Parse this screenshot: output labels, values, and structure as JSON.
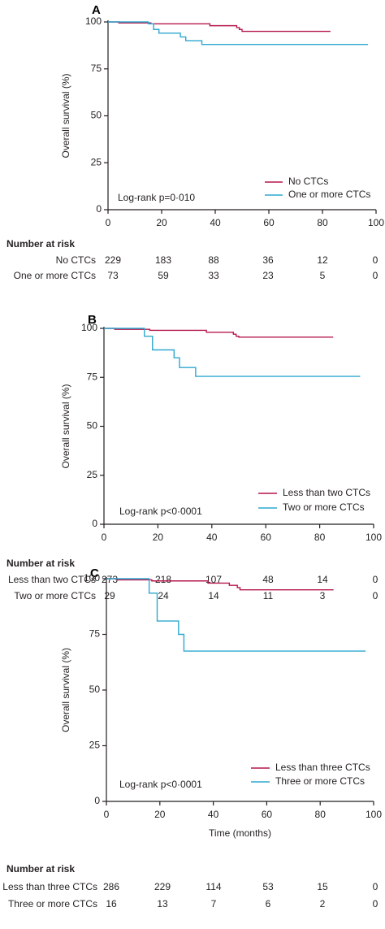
{
  "colors": {
    "red": "#b5174b",
    "blue": "#2ea8cf",
    "axis": "#231f20"
  },
  "chart_data": [
    {
      "type": "line",
      "panel": "A",
      "xlabel": "",
      "ylabel": "Overall survival (%)",
      "xlim": [
        0,
        100
      ],
      "ylim": [
        0,
        100
      ],
      "xticks": [
        0,
        20,
        40,
        60,
        80,
        100
      ],
      "yticks": [
        0,
        25,
        50,
        75,
        100
      ],
      "annotation": "Log-rank p=0·010",
      "legend_position": "bottom-right",
      "series": [
        {
          "name": "No CTCs",
          "color": "#b5174b",
          "x": [
            0,
            4,
            16,
            38,
            48,
            49,
            50,
            83
          ],
          "y": [
            100,
            99.5,
            99,
            98,
            97,
            96,
            95,
            95
          ]
        },
        {
          "name": "One or more CTCs",
          "color": "#2ea8cf",
          "x": [
            0,
            15,
            17,
            19,
            27,
            29,
            35,
            97
          ],
          "y": [
            100,
            99,
            96,
            94,
            92,
            90,
            88,
            88
          ]
        }
      ],
      "risk_table": {
        "title": "Number at risk",
        "rows": [
          {
            "label": "No CTCs",
            "values": [
              "229",
              "183",
              "88",
              "36",
              "12",
              "0"
            ]
          },
          {
            "label": "One or more CTCs",
            "values": [
              "73",
              "59",
              "33",
              "23",
              "5",
              "0"
            ]
          }
        ]
      }
    },
    {
      "type": "line",
      "panel": "B",
      "xlabel": "",
      "ylabel": "Overall survival (%)",
      "xlim": [
        0,
        100
      ],
      "ylim": [
        0,
        100
      ],
      "xticks": [
        0,
        20,
        40,
        60,
        80,
        100
      ],
      "yticks": [
        0,
        25,
        50,
        75,
        100
      ],
      "annotation": "Log-rank p<0·0001",
      "legend_position": "bottom-right",
      "series": [
        {
          "name": "Less than two CTCs",
          "color": "#b5174b",
          "x": [
            0,
            4,
            17,
            38,
            48,
            49,
            50,
            85
          ],
          "y": [
            100,
            99.5,
            99,
            98,
            97,
            96,
            95.5,
            95.5
          ]
        },
        {
          "name": "Two or more CTCs",
          "color": "#2ea8cf",
          "x": [
            0,
            15,
            18,
            26,
            28,
            34,
            95
          ],
          "y": [
            100,
            96,
            89,
            85,
            80,
            75.5,
            75.5
          ]
        }
      ],
      "risk_table": {
        "title": "Number at risk",
        "rows": [
          {
            "label": "Less than two CTCs",
            "values": [
              "273",
              "218",
              "107",
              "48",
              "14",
              "0"
            ]
          },
          {
            "label": "Two or more CTCs",
            "values": [
              "29",
              "24",
              "14",
              "11",
              "3",
              "0"
            ]
          }
        ]
      }
    },
    {
      "type": "line",
      "panel": "C",
      "xlabel": "Time (months)",
      "ylabel": "Overall survival (%)",
      "xlim": [
        0,
        100
      ],
      "ylim": [
        0,
        100
      ],
      "xticks": [
        0,
        20,
        40,
        60,
        80,
        100
      ],
      "yticks": [
        0,
        25,
        50,
        75,
        100
      ],
      "annotation": "Log-rank p<0·0001",
      "legend_position": "bottom-right",
      "series": [
        {
          "name": "Less than three  CTCs",
          "color": "#b5174b",
          "x": [
            0,
            4,
            17,
            38,
            46,
            49,
            50,
            85
          ],
          "y": [
            100,
            99.5,
            99,
            98,
            97,
            96,
            95,
            95
          ]
        },
        {
          "name": "Three or more CTCs",
          "color": "#2ea8cf",
          "x": [
            0,
            16,
            19,
            27,
            29,
            97
          ],
          "y": [
            100,
            93.5,
            81,
            75,
            67.5,
            67.5
          ]
        }
      ],
      "risk_table": {
        "title": "Number at risk",
        "rows": [
          {
            "label": "Less than three CTCs",
            "values": [
              "286",
              "229",
              "114",
              "53",
              "15",
              "0"
            ]
          },
          {
            "label": "Three or more CTCs",
            "values": [
              "16",
              "13",
              "7",
              "6",
              "2",
              "0"
            ]
          }
        ]
      }
    }
  ]
}
